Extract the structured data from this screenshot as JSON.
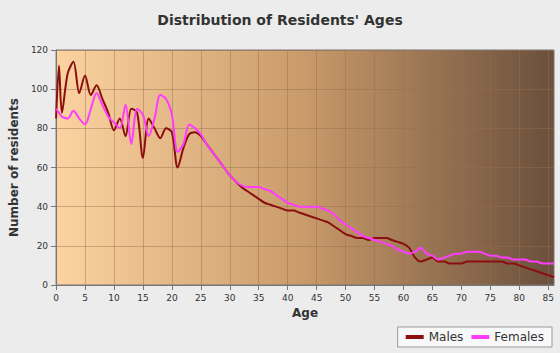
{
  "chart_data": {
    "type": "line",
    "title": "Distribution of Residents' Ages",
    "x_label": "Age",
    "y_label": "Number of residents",
    "x": [
      0,
      0.5,
      1,
      2,
      3,
      4,
      5,
      6,
      7,
      8,
      9,
      10,
      11,
      12,
      13,
      14,
      15,
      16,
      17,
      18,
      19,
      20,
      21,
      22,
      23,
      24,
      25,
      26,
      27,
      28,
      29,
      30,
      31,
      32,
      33,
      34,
      35,
      36,
      37,
      38,
      39,
      40,
      41,
      42,
      43,
      44,
      45,
      46,
      47,
      48,
      49,
      50,
      51,
      52,
      53,
      54,
      55,
      56,
      57,
      58,
      59,
      60,
      61,
      62,
      63,
      64,
      65,
      66,
      67,
      68,
      69,
      70,
      71,
      72,
      73,
      74,
      75,
      76,
      77,
      78,
      79,
      80,
      81,
      82,
      83,
      84,
      85,
      86
    ],
    "series": [
      {
        "name": "Males",
        "color": "#8b0f0f",
        "values": [
          85,
          112,
          88,
          108,
          114,
          98,
          107,
          97,
          102,
          95,
          88,
          79,
          85,
          76,
          90,
          88,
          65,
          85,
          80,
          75,
          80,
          78,
          60,
          70,
          77,
          78,
          76,
          72,
          68,
          64,
          60,
          56,
          53,
          50,
          48,
          46,
          44,
          42,
          41,
          40,
          39,
          38,
          38,
          37,
          36,
          35,
          34,
          33,
          32,
          30,
          28,
          26,
          25,
          24,
          24,
          23,
          24,
          24,
          24,
          23,
          22,
          21,
          19,
          14,
          12,
          13,
          14,
          12,
          12,
          11,
          11,
          11,
          12,
          12,
          12,
          12,
          12,
          12,
          12,
          11,
          11,
          10,
          9,
          8,
          7,
          6,
          5,
          4
        ]
      },
      {
        "name": "Females",
        "color": "#ff3cff",
        "values": [
          90,
          88,
          86,
          85,
          89,
          85,
          82,
          90,
          98,
          92,
          86,
          83,
          80,
          92,
          72,
          90,
          87,
          76,
          85,
          97,
          95,
          87,
          68,
          72,
          82,
          80,
          77,
          72,
          68,
          64,
          60,
          56,
          53,
          51,
          50,
          50,
          50,
          49,
          48,
          46,
          44,
          42,
          41,
          40,
          40,
          40,
          40,
          39,
          38,
          36,
          33,
          31,
          29,
          27,
          25,
          24,
          23,
          22,
          21,
          20,
          18,
          17,
          16,
          17,
          19,
          16,
          15,
          13,
          14,
          15,
          16,
          16,
          17,
          17,
          17,
          16,
          15,
          15,
          14,
          14,
          13,
          13,
          13,
          12,
          12,
          11,
          11,
          11
        ]
      }
    ],
    "xlim": [
      0,
      86
    ],
    "xticks": [
      0,
      5,
      10,
      15,
      20,
      25,
      30,
      35,
      40,
      45,
      50,
      55,
      60,
      65,
      70,
      75,
      80,
      85
    ],
    "ylim": [
      0,
      120
    ],
    "yticks": [
      0,
      20,
      40,
      60,
      80,
      100,
      120
    ],
    "grid": true,
    "legend": "bottom-right",
    "line_style": "smooth"
  }
}
